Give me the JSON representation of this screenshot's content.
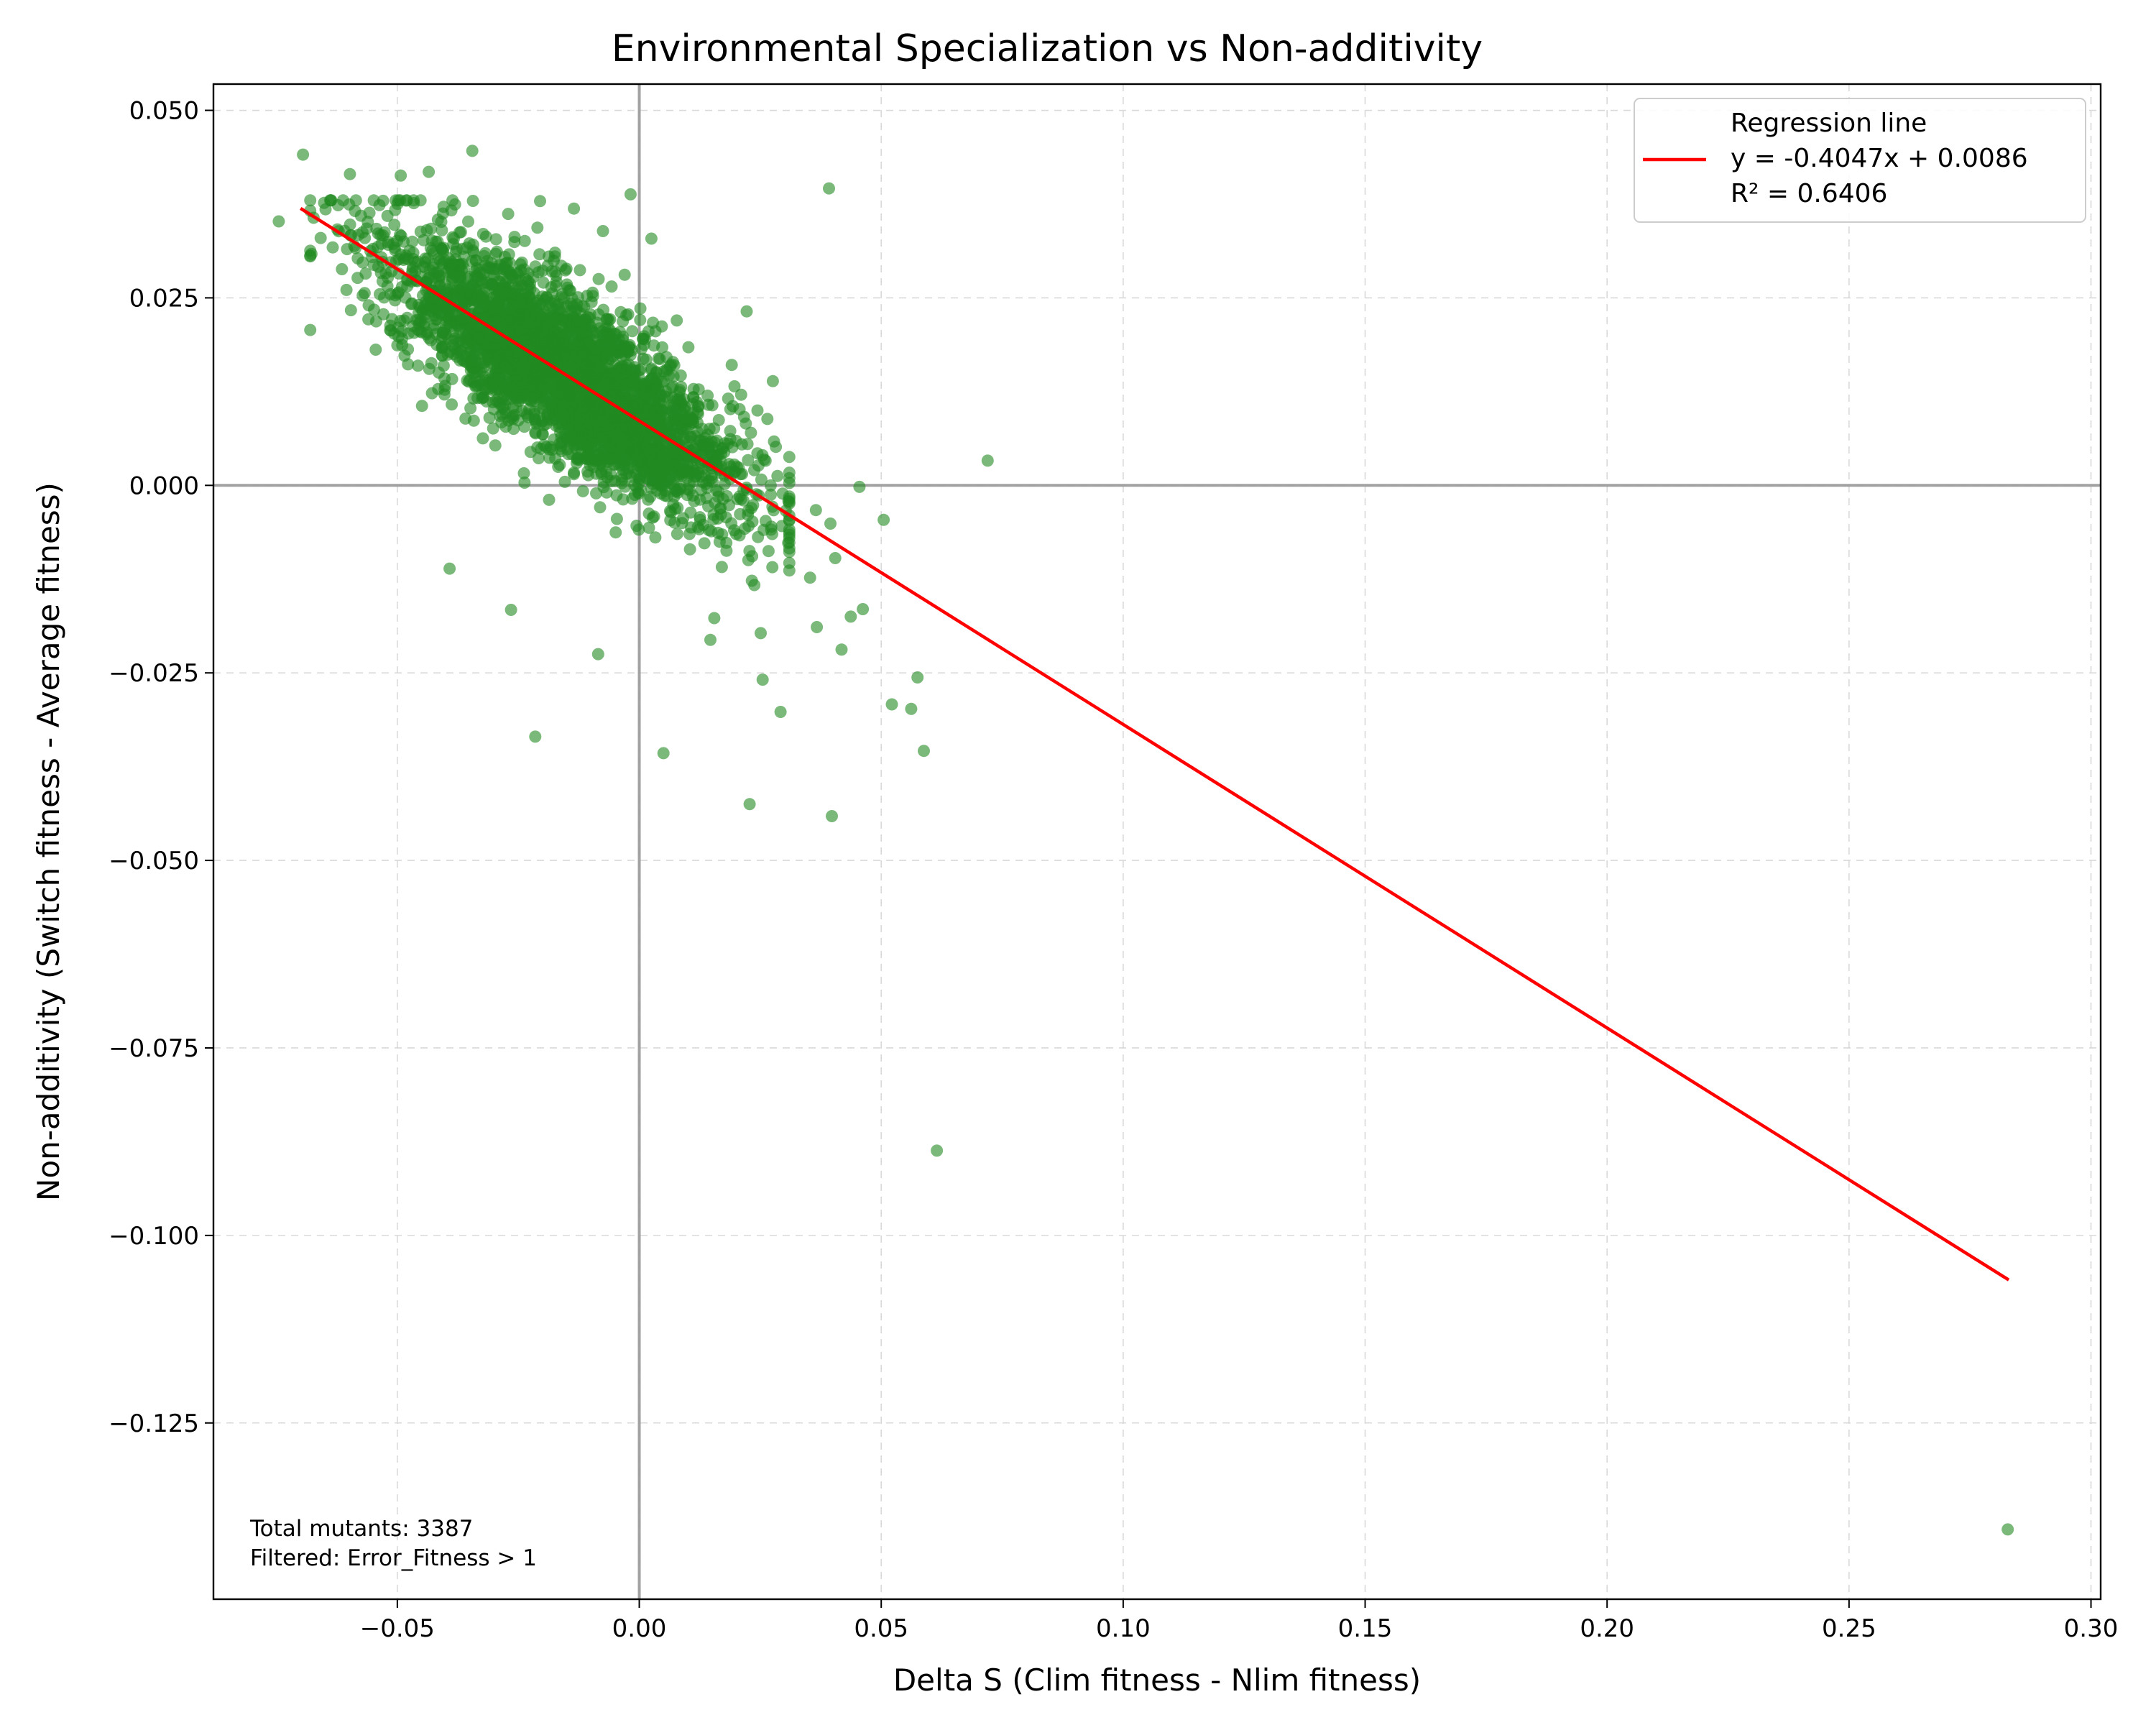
{
  "chart_data": {
    "type": "scatter",
    "title": "Environmental Specialization vs Non-additivity",
    "xlabel": "Delta S (Clim fitness - Nlim fitness)",
    "ylabel": "Non-additivity (Switch fitness - Average fitness)",
    "xlim": [
      -0.088,
      0.302
    ],
    "ylim": [
      -0.1485,
      0.0535
    ],
    "xticks": [
      -0.05,
      0.0,
      0.05,
      0.1,
      0.15,
      0.2,
      0.25,
      0.3
    ],
    "xtick_labels": [
      "−0.05",
      "0.00",
      "0.05",
      "0.10",
      "0.15",
      "0.20",
      "0.25",
      "0.30"
    ],
    "yticks": [
      0.05,
      0.025,
      0.0,
      -0.025,
      -0.05,
      -0.075,
      -0.1,
      -0.125
    ],
    "ytick_labels": [
      "0.050",
      "0.025",
      "0.000",
      "−0.025",
      "−0.050",
      "−0.075",
      "−0.100",
      "−0.125"
    ],
    "grid": true,
    "reference_lines": {
      "x": 0,
      "y": 0
    },
    "colors": {
      "points": "#228B22",
      "regression": "#ff0000",
      "reference": "#999999",
      "grid": "#d9d9d9"
    },
    "regression": {
      "slope": -0.4047,
      "intercept": 0.0086,
      "r2": 0.6406,
      "x_range": [
        -0.07,
        0.283
      ]
    },
    "legend": {
      "position": "top-right",
      "entries": [
        "Regression line",
        "y = -0.4047x + 0.0086",
        "R² = 0.6406"
      ]
    },
    "annotation": [
      "Total mutants: 3387",
      "Filtered: Error_Fitness > 1"
    ],
    "cluster": {
      "n_points": 3387,
      "x_mean": -0.015,
      "x_sd": 0.018,
      "residual_sd": 0.0055
    },
    "outliers": [
      {
        "x": 0.2828,
        "y": -0.1392
      },
      {
        "x": 0.0615,
        "y": -0.0887
      },
      {
        "x": 0.0398,
        "y": -0.0441
      },
      {
        "x": 0.0228,
        "y": -0.0425
      },
      {
        "x": 0.005,
        "y": -0.0357
      },
      {
        "x": -0.0215,
        "y": -0.0335
      },
      {
        "x": 0.0588,
        "y": -0.0354
      },
      {
        "x": 0.0562,
        "y": -0.0298
      },
      {
        "x": 0.0522,
        "y": -0.0292
      },
      {
        "x": 0.0575,
        "y": -0.0256
      },
      {
        "x": 0.0292,
        "y": -0.0302
      },
      {
        "x": 0.0255,
        "y": -0.0259
      },
      {
        "x": -0.0085,
        "y": -0.0225
      },
      {
        "x": 0.0418,
        "y": -0.0219
      },
      {
        "x": 0.0147,
        "y": -0.0206
      },
      {
        "x": 0.0251,
        "y": -0.0197
      },
      {
        "x": 0.0367,
        "y": -0.0189
      },
      {
        "x": 0.0437,
        "y": -0.0175
      },
      {
        "x": 0.0462,
        "y": -0.0165
      },
      {
        "x": -0.0265,
        "y": -0.0166
      },
      {
        "x": 0.0155,
        "y": -0.0177
      },
      {
        "x": 0.072,
        "y": 0.0033
      },
      {
        "x": 0.0392,
        "y": 0.0396
      },
      {
        "x": -0.0695,
        "y": 0.0441
      },
      {
        "x": -0.0345,
        "y": 0.0446
      },
      {
        "x": -0.0018,
        "y": 0.0388
      },
      {
        "x": -0.0598,
        "y": 0.0415
      },
      {
        "x": -0.0493,
        "y": 0.0413
      },
      {
        "x": -0.0435,
        "y": 0.0418
      },
      {
        "x": -0.0745,
        "y": 0.0352
      },
      {
        "x": 0.0505,
        "y": -0.0046
      },
      {
        "x": 0.0405,
        "y": -0.0097
      },
      {
        "x": 0.0395,
        "y": -0.0051
      },
      {
        "x": 0.0365,
        "y": -0.0033
      },
      {
        "x": -0.0392,
        "y": -0.0111
      },
      {
        "x": 0.0353,
        "y": -0.0123
      },
      {
        "x": 0.0222,
        "y": 0.0232
      },
      {
        "x": 0.0276,
        "y": 0.0139
      },
      {
        "x": 0.0455,
        "y": -0.0002
      },
      {
        "x": 0.0025,
        "y": 0.0329
      },
      {
        "x": -0.0075,
        "y": 0.0339
      },
      {
        "x": -0.0135,
        "y": 0.0369
      },
      {
        "x": -0.0205,
        "y": 0.0379
      }
    ]
  }
}
